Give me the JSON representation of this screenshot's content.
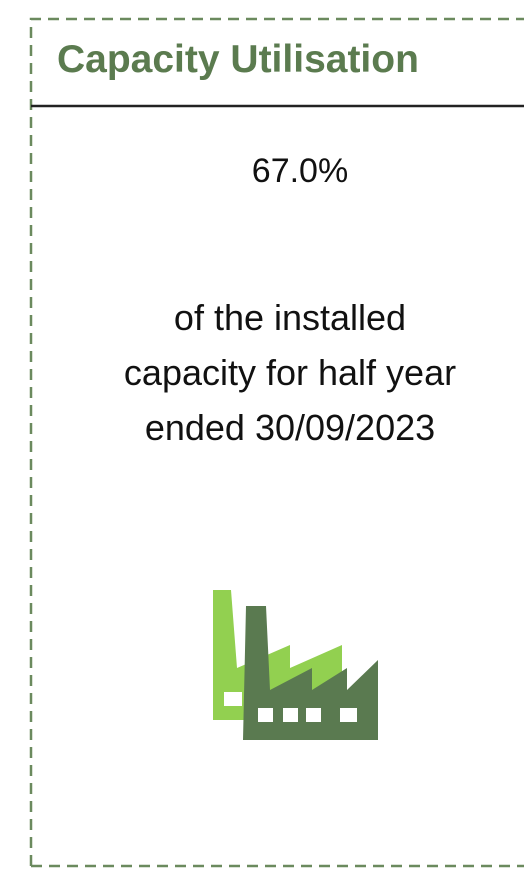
{
  "card": {
    "title": "Capacity Utilisation",
    "value": "67.0%",
    "description": [
      "of the installed",
      "capacity for half year",
      "ended 30/09/2023"
    ]
  }
}
